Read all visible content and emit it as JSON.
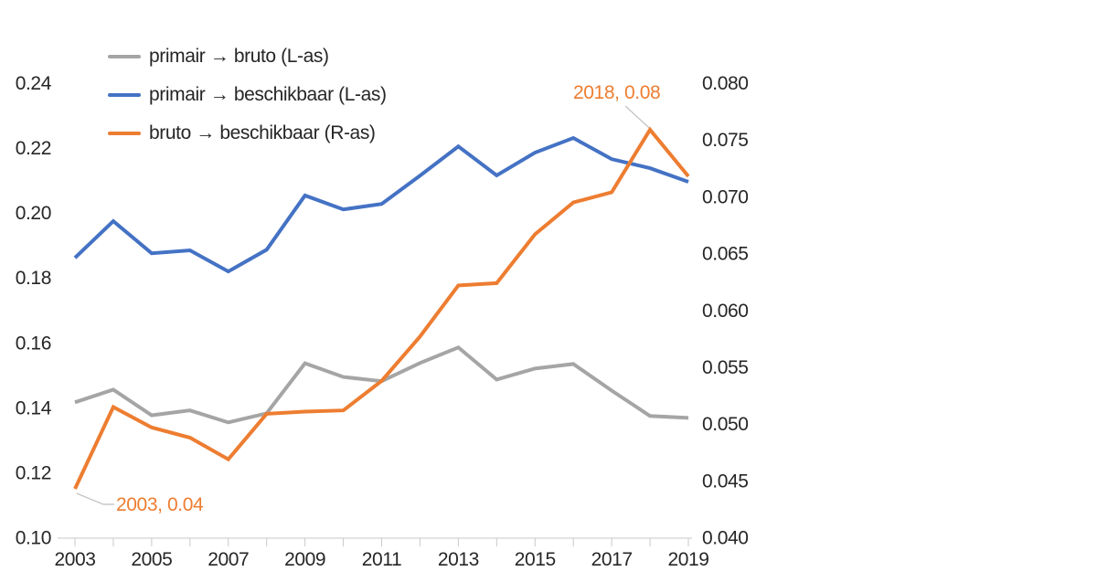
{
  "chart_data": {
    "type": "line",
    "categories": [
      2003,
      2004,
      2005,
      2006,
      2007,
      2008,
      2009,
      2010,
      2011,
      2012,
      2013,
      2014,
      2015,
      2016,
      2017,
      2018,
      2019
    ],
    "series": [
      {
        "name": "primair → bruto (L-as)",
        "axis": "left",
        "color": "#A5A5A5",
        "values": [
          0.1417,
          0.1456,
          0.1377,
          0.1392,
          0.1355,
          0.1383,
          0.1537,
          0.1495,
          0.1482,
          0.1538,
          0.1586,
          0.1487,
          0.1521,
          0.1535,
          0.1453,
          0.1375,
          0.1369
        ]
      },
      {
        "name": "primair → beschikbaar (L-as)",
        "axis": "left",
        "color": "#4472C4",
        "values": [
          0.1862,
          0.1975,
          0.1876,
          0.1885,
          0.182,
          0.1887,
          0.2054,
          0.2011,
          0.2028,
          0.2115,
          0.2205,
          0.2116,
          0.2186,
          0.2231,
          0.2166,
          0.2138,
          0.2096
        ]
      },
      {
        "name": "bruto → beschikbaar (R-as)",
        "axis": "right",
        "color": "#ED7D31",
        "values": [
          0.0443,
          0.0515,
          0.0497,
          0.0488,
          0.0469,
          0.0509,
          0.0511,
          0.0512,
          0.0538,
          0.0577,
          0.0622,
          0.0624,
          0.0667,
          0.0695,
          0.0704,
          0.0759,
          0.0718
        ]
      }
    ],
    "left_axis": {
      "min": 0.1,
      "max": 0.24,
      "tick_labels": [
        "0.24",
        "0.22",
        "0.20",
        "0.18",
        "0.16",
        "0.14",
        "0.12",
        "0.10"
      ]
    },
    "right_axis": {
      "min": 0.04,
      "max": 0.08,
      "tick_labels": [
        "0.080",
        "0.075",
        "0.070",
        "0.065",
        "0.060",
        "0.055",
        "0.050",
        "0.045",
        "0.040"
      ]
    },
    "x_axis": {
      "tick_labels": [
        "2003",
        "2005",
        "2007",
        "2009",
        "2011",
        "2013",
        "2015",
        "2017",
        "2019"
      ],
      "minor_tick_years": [
        2003,
        2004,
        2005,
        2006,
        2007,
        2008,
        2009,
        2010,
        2011,
        2012,
        2013,
        2014,
        2015,
        2016,
        2017,
        2018,
        2019
      ]
    },
    "annotations": [
      {
        "text": "2018, 0.08",
        "color": "#ED7D31",
        "target_year": 2018,
        "target_series": "bruto → beschikbaar (R-as)"
      },
      {
        "text": "2003, 0.04",
        "color": "#ED7D31",
        "target_year": 2003,
        "target_series": "bruto → beschikbaar (R-as)"
      }
    ],
    "legend_position": "top-left",
    "grid": false
  },
  "colors": {
    "background": "#FFFFFF",
    "axis_line": "#C9C9C9",
    "axis_text": "#262626",
    "leader_line": "#BFBFBF"
  }
}
